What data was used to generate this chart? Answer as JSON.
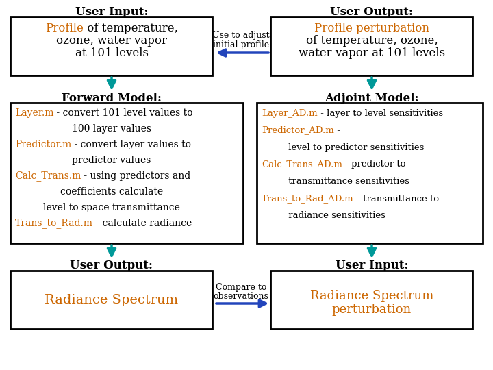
{
  "bg": "#ffffff",
  "orange": "#cc6600",
  "black": "#000000",
  "teal": "#009999",
  "blue": "#2244bb",
  "left_header_top": "User Input:",
  "left_top_p1": "Profile",
  "left_top_p2": " of temperature,",
  "left_top_l2": "ozone, water vapor",
  "left_top_l3": "at 101 levels",
  "left_mid_label": "Forward Model:",
  "left_bot_label": "User Output:",
  "left_bot_text": "Radiance Spectrum",
  "right_header_top": "User Output:",
  "right_top_orange": "Profile perturbation",
  "right_top_l2": "of temperature, ozone,",
  "right_top_l3": "water vapor at 101 levels",
  "right_mid_label": "Adjoint Model:",
  "right_bot_label": "User Input:",
  "right_bot_l1": "Radiance Spectrum",
  "right_bot_l2": "perturbation",
  "mid_top_l1": "Use to adjust",
  "mid_top_l2": "initial profile",
  "mid_bot_l1": "Compare to",
  "mid_bot_l2": "observations",
  "lm1p1": "Layer.m",
  "lm1p2": " - convert 101 level values to",
  "lm2": "100 layer values",
  "lm3p1": "Predictor.m",
  "lm3p2": " - convert layer values to",
  "lm4": "predictor values",
  "lm5p1": "Calc_Trans.m",
  "lm5p2": " - using predictors and",
  "lm6": "coefficients calculate",
  "lm7": "level to space transmittance",
  "lm8p1": "Trans_to_Rad.m",
  "lm8p2": " - calculate radiance",
  "rm1p1": "Layer_AD.m",
  "rm1p2": " - layer to level sensitivities",
  "rm2p1": "Predictor_AD.m",
  "rm2p2": " -",
  "rm3": "     level to predictor sensitivities",
  "rm4p1": "Calc_Trans_AD.m",
  "rm4p2": " - predictor to",
  "rm5": "     transmittance sensitivities",
  "rm6p1": "Trans_to_Rad_AD.m",
  "rm6p2": " - transmittance to",
  "rm7": "     radiance sensitivities"
}
